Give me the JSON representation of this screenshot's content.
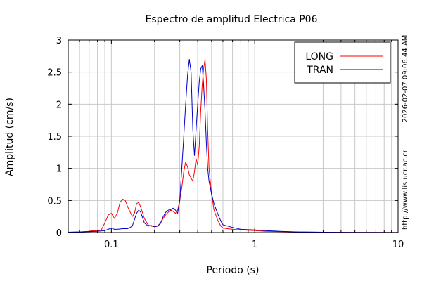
{
  "chart_data": {
    "type": "line",
    "title": "Espectro de amplitud Electrica P06",
    "xlabel": "Periodo (s)",
    "ylabel": "Amplitud (cm/s)",
    "xscale": "log",
    "xlim": [
      0.05,
      10
    ],
    "ylim": [
      0,
      3
    ],
    "x_ticks": [
      0.1,
      1,
      10
    ],
    "x_tick_labels": [
      "0.1",
      "1",
      "10"
    ],
    "y_ticks": [
      0,
      0.5,
      1,
      1.5,
      2,
      2.5,
      3
    ],
    "y_tick_labels": [
      "0",
      "0.5",
      "1",
      "1.5",
      "2",
      "2.5",
      "3"
    ],
    "grid": true,
    "legend_position": "top-right",
    "timestamp": "2026-02-07 09:06:44 AM",
    "url": "http://www.lis.ucr.ac.cr",
    "series": [
      {
        "name": "LONG",
        "color": "#ff0000",
        "points": [
          [
            0.05,
            0.005
          ],
          [
            0.06,
            0.01
          ],
          [
            0.07,
            0.02
          ],
          [
            0.075,
            0.03
          ],
          [
            0.08,
            0.025
          ],
          [
            0.085,
            0.04
          ],
          [
            0.09,
            0.15
          ],
          [
            0.095,
            0.27
          ],
          [
            0.1,
            0.3
          ],
          [
            0.105,
            0.22
          ],
          [
            0.11,
            0.3
          ],
          [
            0.115,
            0.47
          ],
          [
            0.12,
            0.52
          ],
          [
            0.125,
            0.5
          ],
          [
            0.13,
            0.4
          ],
          [
            0.14,
            0.25
          ],
          [
            0.145,
            0.3
          ],
          [
            0.15,
            0.45
          ],
          [
            0.155,
            0.47
          ],
          [
            0.16,
            0.4
          ],
          [
            0.17,
            0.22
          ],
          [
            0.18,
            0.12
          ],
          [
            0.19,
            0.1
          ],
          [
            0.2,
            0.09
          ],
          [
            0.21,
            0.1
          ],
          [
            0.22,
            0.15
          ],
          [
            0.23,
            0.22
          ],
          [
            0.24,
            0.28
          ],
          [
            0.25,
            0.32
          ],
          [
            0.26,
            0.35
          ],
          [
            0.27,
            0.33
          ],
          [
            0.28,
            0.3
          ],
          [
            0.29,
            0.35
          ],
          [
            0.3,
            0.5
          ],
          [
            0.31,
            0.7
          ],
          [
            0.32,
            0.95
          ],
          [
            0.33,
            1.1
          ],
          [
            0.34,
            1.02
          ],
          [
            0.35,
            0.9
          ],
          [
            0.36,
            0.85
          ],
          [
            0.37,
            0.8
          ],
          [
            0.38,
            0.95
          ],
          [
            0.39,
            1.15
          ],
          [
            0.4,
            1.05
          ],
          [
            0.41,
            1.35
          ],
          [
            0.42,
            1.9
          ],
          [
            0.43,
            2.3
          ],
          [
            0.44,
            2.55
          ],
          [
            0.45,
            2.7
          ],
          [
            0.46,
            2.4
          ],
          [
            0.47,
            1.6
          ],
          [
            0.48,
            1.0
          ],
          [
            0.5,
            0.6
          ],
          [
            0.52,
            0.35
          ],
          [
            0.55,
            0.2
          ],
          [
            0.58,
            0.1
          ],
          [
            0.6,
            0.07
          ],
          [
            0.7,
            0.05
          ],
          [
            0.8,
            0.04
          ],
          [
            1.0,
            0.03
          ],
          [
            1.2,
            0.02
          ],
          [
            1.5,
            0.015
          ],
          [
            2,
            0.01
          ],
          [
            3,
            0.005
          ],
          [
            5,
            0.003
          ],
          [
            7,
            0.002
          ],
          [
            10,
            0.001
          ]
        ]
      },
      {
        "name": "TRAN",
        "color": "#0000cc",
        "points": [
          [
            0.05,
            0.005
          ],
          [
            0.06,
            0.01
          ],
          [
            0.07,
            0.015
          ],
          [
            0.08,
            0.02
          ],
          [
            0.09,
            0.03
          ],
          [
            0.095,
            0.05
          ],
          [
            0.1,
            0.07
          ],
          [
            0.105,
            0.05
          ],
          [
            0.11,
            0.05
          ],
          [
            0.12,
            0.06
          ],
          [
            0.13,
            0.06
          ],
          [
            0.14,
            0.1
          ],
          [
            0.15,
            0.3
          ],
          [
            0.155,
            0.35
          ],
          [
            0.16,
            0.32
          ],
          [
            0.17,
            0.15
          ],
          [
            0.18,
            0.1
          ],
          [
            0.19,
            0.11
          ],
          [
            0.2,
            0.09
          ],
          [
            0.21,
            0.1
          ],
          [
            0.22,
            0.14
          ],
          [
            0.23,
            0.25
          ],
          [
            0.24,
            0.32
          ],
          [
            0.25,
            0.35
          ],
          [
            0.26,
            0.36
          ],
          [
            0.27,
            0.38
          ],
          [
            0.28,
            0.35
          ],
          [
            0.29,
            0.3
          ],
          [
            0.3,
            0.5
          ],
          [
            0.31,
            1.0
          ],
          [
            0.32,
            1.5
          ],
          [
            0.33,
            2.0
          ],
          [
            0.34,
            2.45
          ],
          [
            0.35,
            2.7
          ],
          [
            0.36,
            2.5
          ],
          [
            0.37,
            1.6
          ],
          [
            0.38,
            1.2
          ],
          [
            0.39,
            1.6
          ],
          [
            0.4,
            2.0
          ],
          [
            0.41,
            2.35
          ],
          [
            0.42,
            2.55
          ],
          [
            0.43,
            2.6
          ],
          [
            0.44,
            2.3
          ],
          [
            0.45,
            1.9
          ],
          [
            0.46,
            1.4
          ],
          [
            0.47,
            1.0
          ],
          [
            0.48,
            0.8
          ],
          [
            0.5,
            0.6
          ],
          [
            0.52,
            0.45
          ],
          [
            0.55,
            0.3
          ],
          [
            0.58,
            0.18
          ],
          [
            0.6,
            0.12
          ],
          [
            0.7,
            0.08
          ],
          [
            0.8,
            0.05
          ],
          [
            1.0,
            0.04
          ],
          [
            1.2,
            0.03
          ],
          [
            1.5,
            0.02
          ],
          [
            2,
            0.01
          ],
          [
            3,
            0.006
          ],
          [
            5,
            0.003
          ],
          [
            7,
            0.002
          ],
          [
            10,
            0.001
          ]
        ]
      }
    ]
  }
}
